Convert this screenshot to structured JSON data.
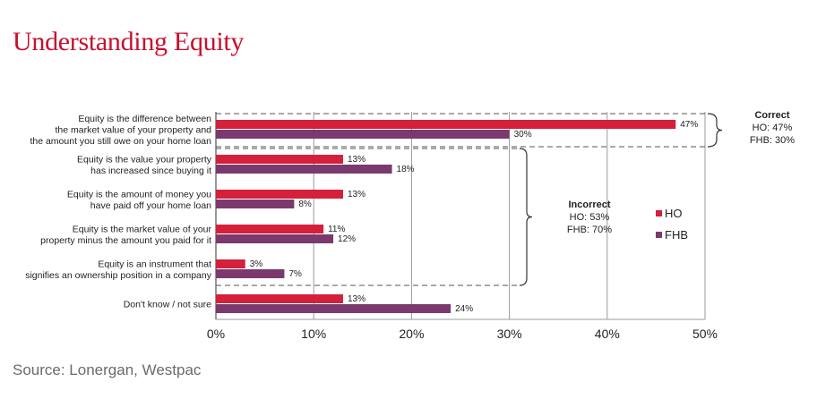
{
  "title": "Understanding Equity",
  "source": "Source: Lonergan, Westpac",
  "colors": {
    "HO": "#d4203a",
    "FHB": "#7a3a6e",
    "accent": "#c8102e"
  },
  "annotations": {
    "correct": {
      "title": "Correct",
      "lines": [
        "HO: 47%",
        "FHB: 30%"
      ]
    },
    "incorrect": {
      "title": "Incorrect",
      "lines": [
        "HO: 53%",
        "FHB: 70%"
      ]
    }
  },
  "chart_data": {
    "type": "bar",
    "orientation": "horizontal",
    "categories": [
      [
        "Equity is the difference between",
        "the market value of your property and",
        "the amount you still owe on your home loan"
      ],
      [
        "Equity is the value your property",
        "has increased since buying it"
      ],
      [
        "Equity is the amount of money you",
        "have paid off your home loan"
      ],
      [
        "Equity is the market value of your",
        "property minus the amount you paid for it"
      ],
      [
        "Equity is an instrument that",
        "signifies an ownership position in a company"
      ],
      [
        "Don't know / not sure"
      ]
    ],
    "series": [
      {
        "name": "HO",
        "values": [
          47,
          13,
          13,
          11,
          3,
          13
        ],
        "labels": [
          "47%",
          "13%",
          "13%",
          "11%",
          "3%",
          "13%"
        ]
      },
      {
        "name": "FHB",
        "values": [
          30,
          18,
          8,
          12,
          7,
          24
        ],
        "labels": [
          "30%",
          "18%",
          "8%",
          "12%",
          "7%",
          "24%"
        ]
      }
    ],
    "xlim": [
      0,
      50
    ],
    "xticks": [
      "0%",
      "10%",
      "20%",
      "30%",
      "40%",
      "50%"
    ],
    "grid": true,
    "legend": "right"
  }
}
